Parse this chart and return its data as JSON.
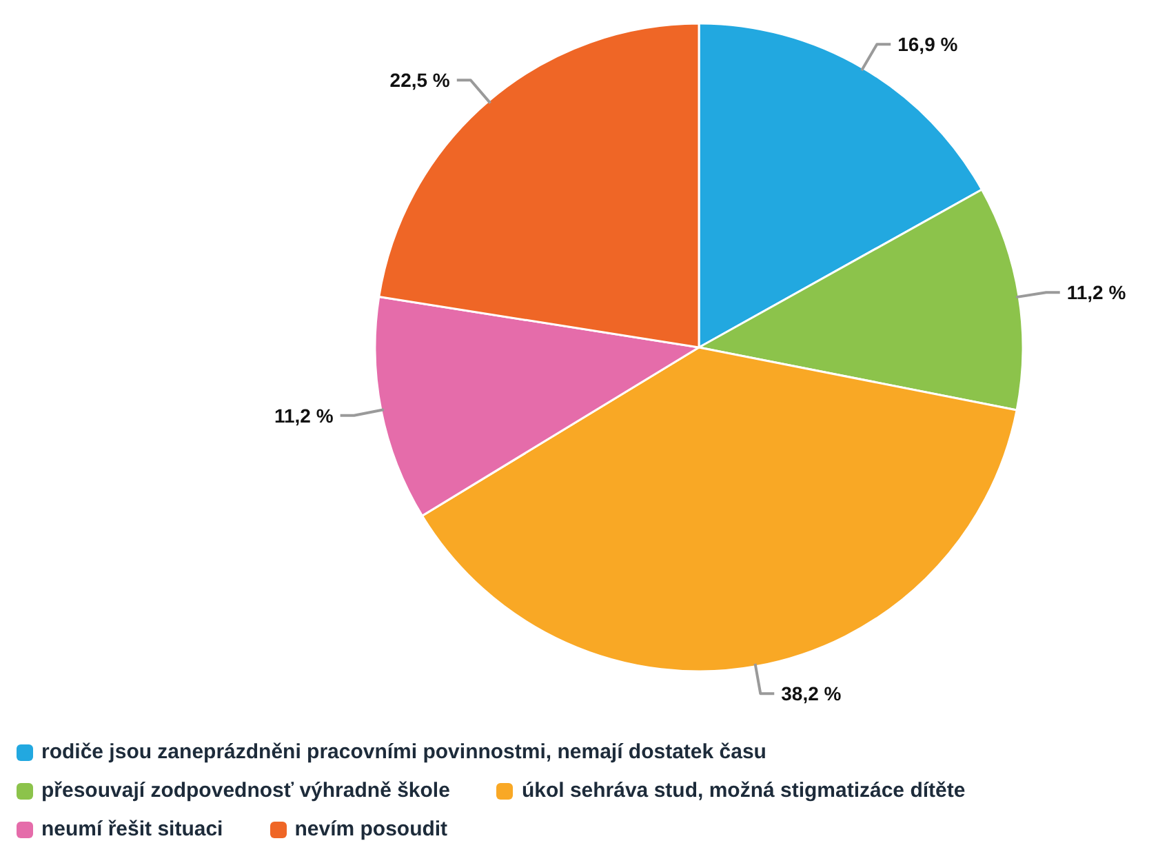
{
  "chart_data": {
    "type": "pie",
    "categories": [
      "rodiče jsou zaneprázdněni pracovními povinnostmi, nemají dostatek času",
      "přesouvají zodpovednosť výhradně škole",
      "úkol sehráva stud, možná stigmatizáce dítěte",
      "neumí řešit situaci",
      "nevím posoudit"
    ],
    "values": [
      16.9,
      11.2,
      38.2,
      11.2,
      22.5
    ],
    "colors": [
      "#22a8e0",
      "#8cc34b",
      "#f9a825",
      "#e56caa",
      "#ef6626"
    ],
    "value_labels": [
      "16,9 %",
      "11,2 %",
      "38,2 %",
      "11,2 %",
      "22,5 %"
    ],
    "legend": "bottom"
  }
}
